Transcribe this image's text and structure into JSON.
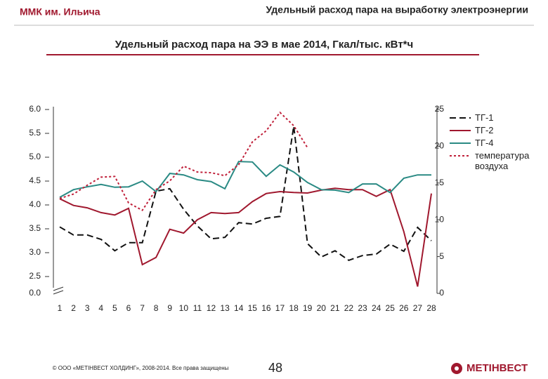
{
  "header": {
    "left": "ММК им. Ильича",
    "right": "Удельный расход пара на выработку электроэнергии"
  },
  "footer": {
    "copyright": "© ООО «МЕТІНВЕСТ ХОЛДИНГ», 2008-2014. Все права защищены",
    "page": "48",
    "logo": "МЕТІНВЕСТ"
  },
  "chart_data": {
    "type": "line",
    "title": "Удельный расход пара на ЭЭ в мае 2014, Гкал/тыс. кВт*ч",
    "categories": [
      1,
      2,
      3,
      4,
      5,
      6,
      7,
      8,
      9,
      10,
      11,
      12,
      13,
      14,
      15,
      16,
      17,
      18,
      19,
      20,
      21,
      22,
      23,
      24,
      25,
      26,
      27,
      28
    ],
    "ylim": [
      2.5,
      6.0
    ],
    "yticks": [
      {
        "value": 2.5,
        "label": "2.5"
      },
      {
        "value": 3.0,
        "label": "3.0"
      },
      {
        "value": 3.5,
        "label": "3.5"
      },
      {
        "value": 4.0,
        "label": "4.0"
      },
      {
        "value": 4.5,
        "label": "4.5"
      },
      {
        "value": 5.0,
        "label": "5.0"
      },
      {
        "value": 5.5,
        "label": "5.5"
      },
      {
        "value": 6.0,
        "label": "6.0"
      }
    ],
    "y_axis_break_label": "0.0",
    "y2lim": [
      0,
      25
    ],
    "y2ticks": [
      0,
      5,
      10,
      15,
      20,
      25
    ],
    "legend": "right",
    "series": [
      {
        "name": "ТГ-1",
        "color": "#111111",
        "dash": "dashed",
        "values": [
          3.54,
          3.37,
          3.37,
          3.28,
          3.04,
          3.21,
          3.21,
          4.29,
          4.34,
          3.91,
          3.56,
          3.29,
          3.32,
          3.63,
          3.6,
          3.72,
          3.76,
          5.65,
          3.19,
          2.91,
          3.04,
          2.84,
          2.94,
          2.97,
          3.18,
          3.03,
          3.53,
          3.25
        ]
      },
      {
        "name": "ТГ-2",
        "color": "#a0182e",
        "dash": "solid",
        "values": [
          4.13,
          3.99,
          3.94,
          3.84,
          3.79,
          3.93,
          2.75,
          2.9,
          3.49,
          3.41,
          3.69,
          3.84,
          3.82,
          3.84,
          4.07,
          4.24,
          4.28,
          4.26,
          4.25,
          4.31,
          4.35,
          4.32,
          4.32,
          4.18,
          4.32,
          3.44,
          2.29,
          4.24
        ]
      },
      {
        "name": "ТГ-4",
        "color": "#2a8a84",
        "dash": "solid",
        "values": [
          4.16,
          4.32,
          4.38,
          4.43,
          4.37,
          4.38,
          4.5,
          4.28,
          4.66,
          4.63,
          4.53,
          4.49,
          4.34,
          4.91,
          4.9,
          4.6,
          4.84,
          4.69,
          4.47,
          4.32,
          4.31,
          4.26,
          4.44,
          4.44,
          4.26,
          4.56,
          4.63,
          4.63
        ]
      },
      {
        "name": "температура воздуха",
        "color": "#c0203a",
        "dash": "dotted",
        "axis": "y2",
        "values": [
          12.9,
          13.5,
          14.7,
          15.8,
          15.9,
          12.3,
          11.3,
          14.1,
          15.3,
          17.3,
          16.5,
          16.4,
          16.0,
          17.5,
          20.6,
          22.1,
          24.6,
          22.8,
          19.8,
          null,
          null,
          null,
          null,
          null,
          null,
          null,
          null,
          null
        ]
      }
    ]
  }
}
